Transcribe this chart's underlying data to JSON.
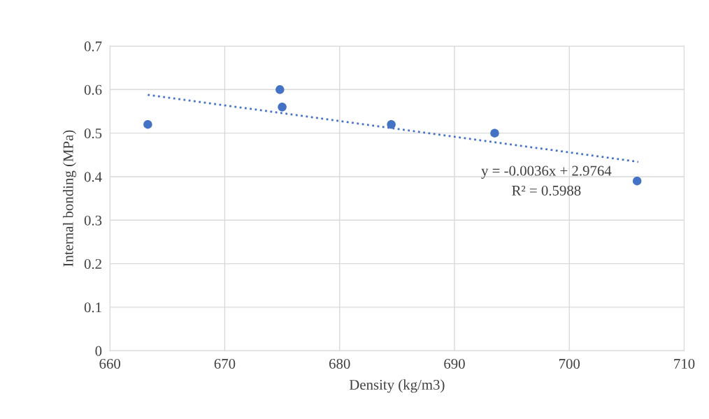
{
  "chart_data": {
    "type": "scatter",
    "xlabel": "Density (kg/m3)",
    "ylabel": "Internal bonding (MPa)",
    "annotations": [
      "y = -0.0036x + 2.9764",
      "R² = 0.5988"
    ],
    "xlim": [
      660,
      710
    ],
    "xticks": [
      660,
      670,
      680,
      690,
      700,
      710
    ],
    "ylim": [
      0,
      0.7
    ],
    "yticks": [
      0,
      0.1,
      0.2,
      0.3,
      0.4,
      0.5,
      0.6,
      0.7
    ],
    "grid": true,
    "marker": "circle",
    "series": [
      {
        "color": "#4472c4",
        "x": [
          663.3,
          674.8,
          675.0,
          684.5,
          693.5,
          705.9
        ],
        "values": [
          0.52,
          0.6,
          0.56,
          0.52,
          0.5,
          0.39
        ]
      },
      {
        "type": "line",
        "color": "#4472c4",
        "line_style": "dotted",
        "marker": "none",
        "x": [
          663.3,
          706.0
        ],
        "values": [
          0.588,
          0.434
        ]
      }
    ]
  }
}
